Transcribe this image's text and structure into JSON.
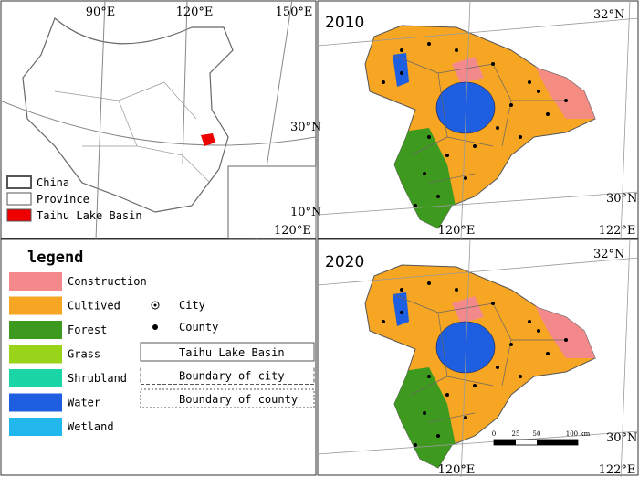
{
  "overview_map": {
    "lon_labels": [
      "90°E",
      "120°E",
      "150°E"
    ],
    "lat_labels": [
      "30°N"
    ],
    "inset_labels": [
      "10°N",
      "120°E"
    ],
    "legend": [
      {
        "label": "China",
        "color": "#ffffff"
      },
      {
        "label": "Province",
        "color": "#ffffff"
      },
      {
        "label": "Taihu Lake Basin",
        "color": "#ee0000"
      }
    ]
  },
  "legend": {
    "title": "legend",
    "land_use": [
      {
        "label": "Construction",
        "color": "#f4898c"
      },
      {
        "label": "Cultived",
        "color": "#f6a623"
      },
      {
        "label": "Forest",
        "color": "#3e9a1e"
      },
      {
        "label": "Grass",
        "color": "#9ad41a"
      },
      {
        "label": "Shrubland",
        "color": "#1ad6a6"
      },
      {
        "label": "Water",
        "color": "#1e5ee0"
      },
      {
        "label": "Wetland",
        "color": "#22b8ee"
      }
    ],
    "symbols": [
      "City",
      "County",
      "Taihu Lake Basin",
      "Boundary of city",
      "Boundary of county"
    ]
  },
  "maps": [
    {
      "year": "2010",
      "lat_labels": [
        "32°N",
        "30°N"
      ],
      "lon_labels": [
        "120°E",
        "122°E"
      ]
    },
    {
      "year": "2020",
      "lat_labels": [
        "32°N",
        "30°N"
      ],
      "lon_labels": [
        "120°E",
        "122°E"
      ],
      "scale_bar": [
        "0",
        "25",
        "50",
        "100 km"
      ]
    }
  ]
}
